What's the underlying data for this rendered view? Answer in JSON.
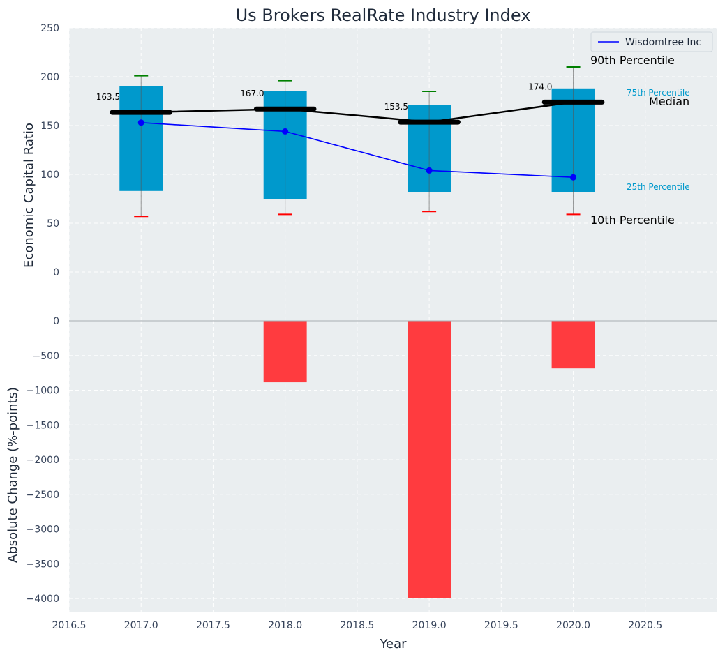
{
  "title": "Us Brokers RealRate Industry Index",
  "chart_data": [
    {
      "type": "box",
      "ylabel": "Economic Capital Ratio",
      "ylim": [
        0,
        250
      ],
      "yticks": [
        0,
        50,
        100,
        150,
        200,
        250
      ],
      "x": [
        2017,
        2018,
        2019,
        2020
      ],
      "p10": [
        57,
        59,
        62,
        59
      ],
      "p25": [
        83,
        75,
        82,
        82
      ],
      "median": [
        163.5,
        167.0,
        153.5,
        174.0
      ],
      "median_labels": [
        "163.5",
        "167.0",
        "153.5",
        "174.0"
      ],
      "p75": [
        190,
        185,
        171,
        188
      ],
      "p90": [
        201,
        196,
        185,
        210
      ],
      "company_series": {
        "name": "Wisdomtree Inc",
        "values": [
          153,
          144,
          104,
          97
        ]
      },
      "legend": {
        "position": "top-right",
        "entries": [
          "Wisdomtree Inc"
        ]
      },
      "annotations": {
        "p90": "90th Percentile",
        "p75": "75th Percentile",
        "median": "Median",
        "p25": "25th Percentile",
        "p10": "10th Percentile"
      },
      "colors": {
        "box": "#0099cc",
        "company": "#0000ff",
        "median": "#000000",
        "p90_cap": "#008000",
        "p10_cap": "#ff0000",
        "bg": "#eaeef0"
      },
      "grid": true
    },
    {
      "type": "bar",
      "ylabel": "Absolute Change (%-points)",
      "xlabel": "Year",
      "ylim": [
        -4200,
        0
      ],
      "yticks": [
        0,
        -500,
        -1000,
        -1500,
        -2000,
        -2500,
        -3000,
        -3500,
        -4000
      ],
      "ytick_labels": [
        "0",
        "−500",
        "−1000",
        "−1500",
        "−2000",
        "−2500",
        "−3000",
        "−3500",
        "−4000"
      ],
      "x": [
        2017,
        2018,
        2019,
        2020
      ],
      "values": [
        0,
        -885,
        -3990,
        -685
      ],
      "xlim": [
        2016.5,
        2021.0
      ],
      "xticks": [
        2016.5,
        2017.0,
        2017.5,
        2018.0,
        2018.5,
        2019.0,
        2019.5,
        2020.0,
        2020.5
      ],
      "xtick_labels": [
        "2016.5",
        "2017.0",
        "2017.5",
        "2018.0",
        "2018.5",
        "2019.0",
        "2019.5",
        "2020.0",
        "2020.5"
      ],
      "colors": {
        "bar": "#ff3b3f"
      },
      "grid": true
    }
  ]
}
